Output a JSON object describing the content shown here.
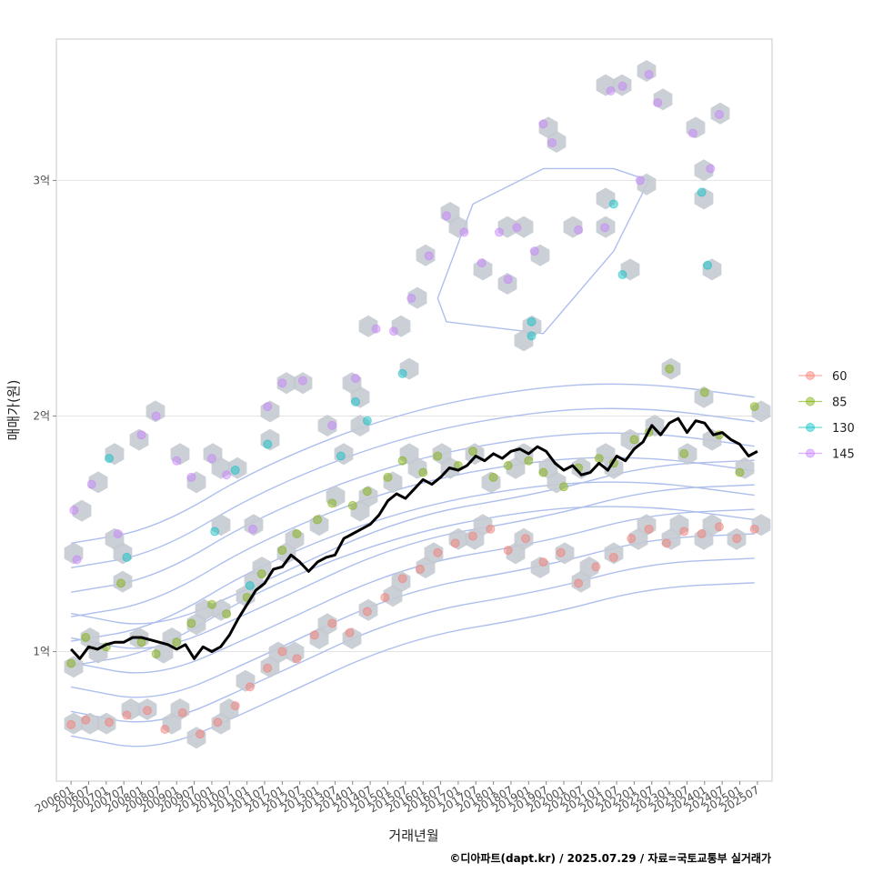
{
  "chart_data": {
    "type": "scatter",
    "xlabel": "거래년월",
    "ylabel": "매매가(원)",
    "credit": "©디아파트(dapt.kr) / 2025.07.29 / 자료=국토교통부 실거래가",
    "x_ticks": [
      "200601",
      "200607",
      "200701",
      "200707",
      "200801",
      "200807",
      "200901",
      "200907",
      "201001",
      "201007",
      "201101",
      "201107",
      "201201",
      "201207",
      "201301",
      "201307",
      "201401",
      "201407",
      "201501",
      "201507",
      "201601",
      "201607",
      "201701",
      "201707",
      "201801",
      "201807",
      "201901",
      "201907",
      "202001",
      "202007",
      "202101",
      "202107",
      "202201",
      "202207",
      "202301",
      "202307",
      "202401",
      "202407",
      "202501",
      "202507"
    ],
    "y_ticks": [
      {
        "value": 10000,
        "label": "1억"
      },
      {
        "value": 20000,
        "label": "2억"
      },
      {
        "value": 30000,
        "label": "3억"
      }
    ],
    "xlim": [
      "2005-08",
      "2025-12"
    ],
    "ylim": [
      4500,
      36000
    ],
    "grid": true,
    "legend_position": "right",
    "series": [
      {
        "name": "60",
        "color": "#F8766D",
        "points": [
          [
            "2006-01",
            6900
          ],
          [
            "2006-06",
            7100
          ],
          [
            "2007-02",
            7000
          ],
          [
            "2007-08",
            7300
          ],
          [
            "2008-03",
            7500
          ],
          [
            "2008-09",
            6700
          ],
          [
            "2009-03",
            7400
          ],
          [
            "2009-09",
            6500
          ],
          [
            "2010-03",
            7000
          ],
          [
            "2010-09",
            7700
          ],
          [
            "2011-02",
            8500
          ],
          [
            "2011-08",
            9300
          ],
          [
            "2012-01",
            10000
          ],
          [
            "2012-06",
            9700
          ],
          [
            "2012-12",
            10700
          ],
          [
            "2013-06",
            11200
          ],
          [
            "2013-12",
            10800
          ],
          [
            "2014-06",
            11700
          ],
          [
            "2014-12",
            12300
          ],
          [
            "2015-06",
            13100
          ],
          [
            "2015-12",
            13500
          ],
          [
            "2016-06",
            14200
          ],
          [
            "2016-12",
            14600
          ],
          [
            "2017-06",
            14900
          ],
          [
            "2017-12",
            15200
          ],
          [
            "2018-06",
            14300
          ],
          [
            "2018-12",
            14800
          ],
          [
            "2019-06",
            13800
          ],
          [
            "2019-12",
            14200
          ],
          [
            "2020-06",
            12900
          ],
          [
            "2020-12",
            13600
          ],
          [
            "2021-06",
            14000
          ],
          [
            "2021-12",
            14800
          ],
          [
            "2022-06",
            15200
          ],
          [
            "2022-12",
            14600
          ],
          [
            "2023-06",
            15100
          ],
          [
            "2023-12",
            15000
          ],
          [
            "2024-06",
            15300
          ],
          [
            "2024-12",
            14800
          ],
          [
            "2025-06",
            15200
          ]
        ]
      },
      {
        "name": "85",
        "color": "#7CAE00",
        "points": [
          [
            "2006-01",
            9500
          ],
          [
            "2006-06",
            10600
          ],
          [
            "2007-01",
            10200
          ],
          [
            "2007-06",
            12900
          ],
          [
            "2008-01",
            10400
          ],
          [
            "2008-06",
            9900
          ],
          [
            "2009-01",
            10400
          ],
          [
            "2009-06",
            11200
          ],
          [
            "2010-01",
            12000
          ],
          [
            "2010-06",
            11600
          ],
          [
            "2011-01",
            12300
          ],
          [
            "2011-06",
            13300
          ],
          [
            "2012-01",
            14300
          ],
          [
            "2012-06",
            15000
          ],
          [
            "2013-01",
            15600
          ],
          [
            "2013-06",
            16300
          ],
          [
            "2014-01",
            16200
          ],
          [
            "2014-06",
            16800
          ],
          [
            "2015-01",
            17400
          ],
          [
            "2015-06",
            18100
          ],
          [
            "2016-01",
            17600
          ],
          [
            "2016-06",
            18300
          ],
          [
            "2017-01",
            17900
          ],
          [
            "2017-06",
            18500
          ],
          [
            "2018-01",
            17400
          ],
          [
            "2018-06",
            17900
          ],
          [
            "2019-01",
            18100
          ],
          [
            "2019-06",
            17600
          ],
          [
            "2020-01",
            17000
          ],
          [
            "2020-06",
            17800
          ],
          [
            "2021-01",
            18200
          ],
          [
            "2021-06",
            18000
          ],
          [
            "2022-01",
            19000
          ],
          [
            "2022-06",
            19300
          ],
          [
            "2023-01",
            22000
          ],
          [
            "2023-06",
            18400
          ],
          [
            "2024-01",
            21000
          ],
          [
            "2024-06",
            19200
          ],
          [
            "2025-01",
            17600
          ],
          [
            "2025-06",
            20400
          ]
        ]
      },
      {
        "name": "130",
        "color": "#00BFC4",
        "points": [
          [
            "2007-02",
            18200
          ],
          [
            "2007-08",
            14000
          ],
          [
            "2010-02",
            15100
          ],
          [
            "2010-09",
            17700
          ],
          [
            "2011-02",
            12800
          ],
          [
            "2011-08",
            18800
          ],
          [
            "2013-09",
            18300
          ],
          [
            "2014-02",
            20600
          ],
          [
            "2014-06",
            19800
          ],
          [
            "2015-06",
            21800
          ],
          [
            "2019-02",
            24000
          ],
          [
            "2019-02",
            23400
          ],
          [
            "2021-06",
            29000
          ],
          [
            "2021-09",
            26000
          ],
          [
            "2023-12",
            29500
          ],
          [
            "2024-02",
            26400
          ]
        ]
      },
      {
        "name": "145",
        "color": "#C77CFF",
        "points": [
          [
            "2006-02",
            16000
          ],
          [
            "2006-03",
            13900
          ],
          [
            "2006-08",
            17100
          ],
          [
            "2007-05",
            15000
          ],
          [
            "2008-01",
            19200
          ],
          [
            "2008-06",
            20000
          ],
          [
            "2009-01",
            18100
          ],
          [
            "2009-06",
            17400
          ],
          [
            "2010-01",
            18200
          ],
          [
            "2010-06",
            17500
          ],
          [
            "2011-03",
            15200
          ],
          [
            "2011-08",
            20400
          ],
          [
            "2012-01",
            21400
          ],
          [
            "2012-08",
            21500
          ],
          [
            "2013-06",
            19600
          ],
          [
            "2014-02",
            21600
          ],
          [
            "2014-09",
            23700
          ],
          [
            "2015-03",
            23600
          ],
          [
            "2015-09",
            25000
          ],
          [
            "2016-03",
            26800
          ],
          [
            "2016-09",
            28500
          ],
          [
            "2017-03",
            27800
          ],
          [
            "2017-09",
            26500
          ],
          [
            "2018-03",
            27800
          ],
          [
            "2018-06",
            25800
          ],
          [
            "2018-09",
            28000
          ],
          [
            "2019-03",
            27000
          ],
          [
            "2019-06",
            32400
          ],
          [
            "2019-09",
            31600
          ],
          [
            "2020-06",
            27900
          ],
          [
            "2021-03",
            28000
          ],
          [
            "2021-05",
            33800
          ],
          [
            "2021-09",
            34000
          ],
          [
            "2022-03",
            30000
          ],
          [
            "2022-06",
            34500
          ],
          [
            "2022-09",
            33300
          ],
          [
            "2023-09",
            32000
          ],
          [
            "2024-03",
            30500
          ],
          [
            "2024-06",
            32800
          ]
        ]
      }
    ],
    "median_line": [
      [
        "2006-01",
        10100
      ],
      [
        "2006-04",
        9700
      ],
      [
        "2006-07",
        10200
      ],
      [
        "2006-10",
        10100
      ],
      [
        "2007-01",
        10300
      ],
      [
        "2007-04",
        10400
      ],
      [
        "2007-07",
        10400
      ],
      [
        "2007-10",
        10600
      ],
      [
        "2008-01",
        10600
      ],
      [
        "2008-04",
        10500
      ],
      [
        "2008-07",
        10400
      ],
      [
        "2008-10",
        10300
      ],
      [
        "2009-01",
        10100
      ],
      [
        "2009-04",
        10300
      ],
      [
        "2009-07",
        9700
      ],
      [
        "2009-10",
        10200
      ],
      [
        "2010-01",
        10000
      ],
      [
        "2010-04",
        10200
      ],
      [
        "2010-07",
        10700
      ],
      [
        "2010-10",
        11400
      ],
      [
        "2011-01",
        12000
      ],
      [
        "2011-04",
        12600
      ],
      [
        "2011-07",
        12900
      ],
      [
        "2011-10",
        13500
      ],
      [
        "2012-01",
        13600
      ],
      [
        "2012-04",
        14100
      ],
      [
        "2012-07",
        13800
      ],
      [
        "2012-10",
        13400
      ],
      [
        "2013-01",
        13800
      ],
      [
        "2013-04",
        14000
      ],
      [
        "2013-07",
        14100
      ],
      [
        "2013-10",
        14800
      ],
      [
        "2014-01",
        15000
      ],
      [
        "2014-04",
        15200
      ],
      [
        "2014-07",
        15400
      ],
      [
        "2014-10",
        15800
      ],
      [
        "2015-01",
        16400
      ],
      [
        "2015-04",
        16700
      ],
      [
        "2015-07",
        16500
      ],
      [
        "2015-10",
        16900
      ],
      [
        "2016-01",
        17300
      ],
      [
        "2016-04",
        17100
      ],
      [
        "2016-07",
        17400
      ],
      [
        "2016-10",
        17800
      ],
      [
        "2017-01",
        17700
      ],
      [
        "2017-04",
        17900
      ],
      [
        "2017-07",
        18300
      ],
      [
        "2017-10",
        18100
      ],
      [
        "2018-01",
        18400
      ],
      [
        "2018-04",
        18200
      ],
      [
        "2018-07",
        18500
      ],
      [
        "2018-10",
        18600
      ],
      [
        "2019-01",
        18400
      ],
      [
        "2019-04",
        18700
      ],
      [
        "2019-07",
        18500
      ],
      [
        "2019-10",
        18000
      ],
      [
        "2020-01",
        17700
      ],
      [
        "2020-04",
        17900
      ],
      [
        "2020-07",
        17500
      ],
      [
        "2020-10",
        17600
      ],
      [
        "2021-01",
        18000
      ],
      [
        "2021-04",
        17700
      ],
      [
        "2021-07",
        18300
      ],
      [
        "2021-10",
        18100
      ],
      [
        "2022-01",
        18600
      ],
      [
        "2022-04",
        18900
      ],
      [
        "2022-07",
        19600
      ],
      [
        "2022-10",
        19200
      ],
      [
        "2023-01",
        19700
      ],
      [
        "2023-04",
        19900
      ],
      [
        "2023-07",
        19300
      ],
      [
        "2023-10",
        19800
      ],
      [
        "2024-01",
        19700
      ],
      [
        "2024-04",
        19200
      ],
      [
        "2024-07",
        19300
      ],
      [
        "2024-10",
        19000
      ],
      [
        "2025-01",
        18800
      ],
      [
        "2025-04",
        18300
      ],
      [
        "2025-07",
        18500
      ]
    ]
  }
}
